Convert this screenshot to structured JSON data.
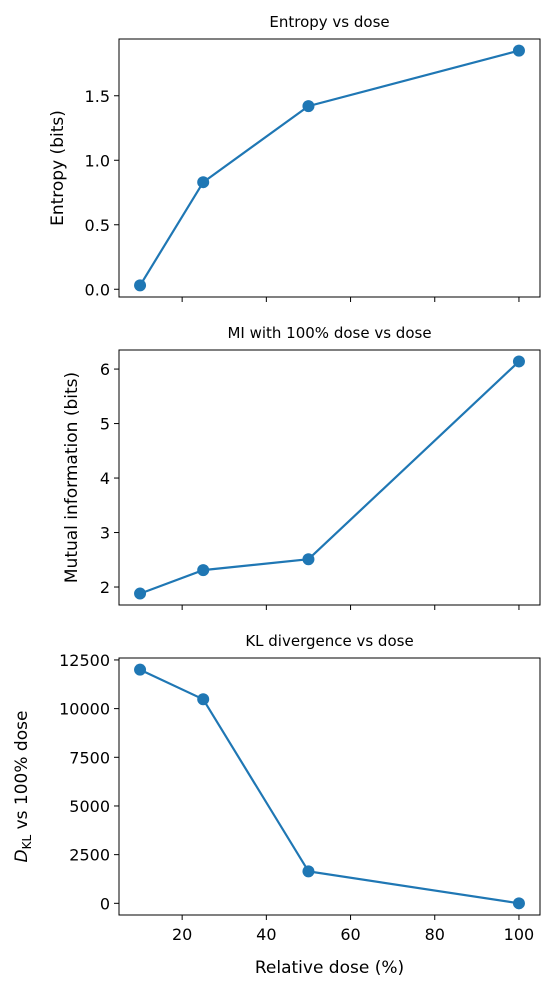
{
  "chart_data": [
    {
      "type": "line",
      "title": "Entropy vs dose",
      "xlabel": "",
      "ylabel": "Entropy (bits)",
      "x": [
        10,
        25,
        50,
        100
      ],
      "series": [
        {
          "values": [
            0.03,
            0.83,
            1.42,
            1.85
          ]
        }
      ],
      "xlim": [
        5,
        105
      ],
      "ylim": [
        -0.06,
        1.94
      ],
      "yticks": [
        0.0,
        0.5,
        1.0,
        1.5
      ],
      "ytick_labels": [
        "0.0",
        "0.5",
        "1.0",
        "1.5"
      ],
      "xticks": [
        20,
        40,
        60,
        80,
        100
      ],
      "xtick_labels": [],
      "grid": false,
      "color": "#1f77b4"
    },
    {
      "type": "line",
      "title": "MI with 100% dose vs dose",
      "xlabel": "",
      "ylabel": "Mutual information (bits)",
      "x": [
        10,
        25,
        50,
        100
      ],
      "series": [
        {
          "values": [
            1.88,
            2.31,
            2.51,
            6.14
          ]
        }
      ],
      "xlim": [
        5,
        105
      ],
      "ylim": [
        1.67,
        6.35
      ],
      "yticks": [
        2,
        3,
        4,
        5,
        6
      ],
      "ytick_labels": [
        "2",
        "3",
        "4",
        "5",
        "6"
      ],
      "xticks": [
        20,
        40,
        60,
        80,
        100
      ],
      "xtick_labels": [],
      "grid": false,
      "color": "#1f77b4"
    },
    {
      "type": "line",
      "title": "KL divergence vs dose",
      "xlabel": "Relative dose (%)",
      "ylabel": "D_KL vs 100% dose",
      "ylabel_main": "D",
      "ylabel_sub": "KL",
      "ylabel_rest": " vs 100% dose",
      "x": [
        10,
        25,
        50,
        100
      ],
      "series": [
        {
          "values": [
            12000,
            10480,
            1640,
            0
          ]
        }
      ],
      "xlim": [
        5,
        105
      ],
      "ylim": [
        -600,
        12600
      ],
      "yticks": [
        0,
        2500,
        5000,
        7500,
        10000,
        12500
      ],
      "ytick_labels": [
        "0",
        "2500",
        "5000",
        "7500",
        "10000",
        "12500"
      ],
      "xticks": [
        20,
        40,
        60,
        80,
        100
      ],
      "xtick_labels": [
        "20",
        "40",
        "60",
        "80",
        "100"
      ],
      "grid": false,
      "color": "#1f77b4"
    }
  ]
}
